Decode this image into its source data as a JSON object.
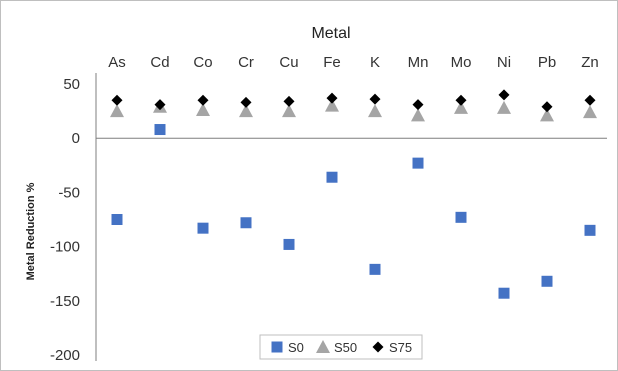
{
  "chart_data": {
    "type": "scatter",
    "title": "Metal",
    "xlabel": "",
    "ylabel": "Metal Reduction %",
    "ylim": [
      -200,
      50
    ],
    "yticks": [
      50,
      0,
      -50,
      -100,
      -150,
      -200
    ],
    "categories": [
      "As",
      "Cd",
      "Co",
      "Cr",
      "Cu",
      "Fe",
      "K",
      "Mn",
      "Mo",
      "Ni",
      "Pb",
      "Zn"
    ],
    "grid": false,
    "category_axis_position": "top",
    "legend_position": "bottom-center",
    "series": [
      {
        "name": "S0",
        "marker": "square",
        "color": "#4472c4",
        "values": [
          -75,
          8,
          -83,
          -78,
          -98,
          -36,
          -121,
          -23,
          -73,
          -143,
          -132,
          -85
        ]
      },
      {
        "name": "S50",
        "marker": "triangle",
        "color": "#a5a5a5",
        "values": [
          25,
          29,
          26,
          25,
          25,
          30,
          25,
          21,
          28,
          28,
          21,
          24
        ]
      },
      {
        "name": "S75",
        "marker": "diamond",
        "color": "#000000",
        "values": [
          35,
          31,
          35,
          33,
          34,
          37,
          36,
          31,
          35,
          40,
          29,
          35
        ]
      }
    ]
  }
}
